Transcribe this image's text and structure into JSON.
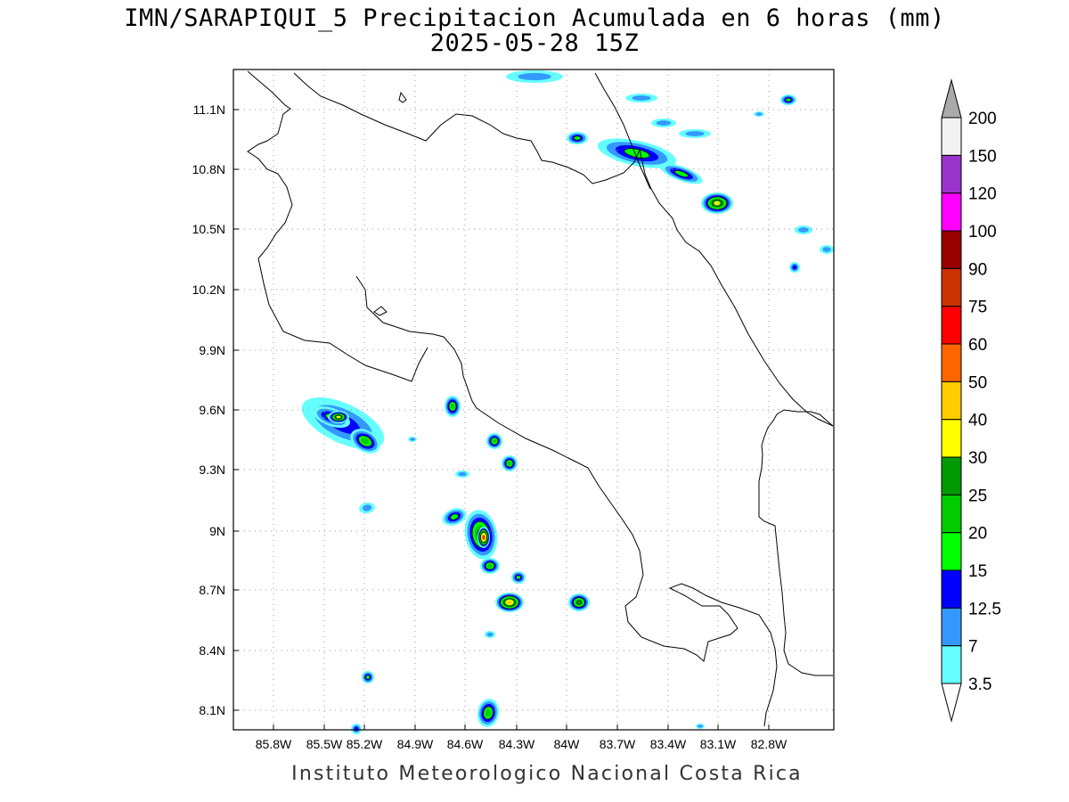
{
  "title": {
    "line1": "IMN/SARAPIQUI_5 Precipitacion Acumulada en 6 horas (mm)",
    "line2": "2025-05-28 15Z"
  },
  "footer": "Instituto Meteorologico Nacional Costa Rica",
  "map": {
    "lon_range": [
      -86.0,
      -83.0
    ],
    "lat_range": [
      8.0,
      11.2
    ],
    "lon_ticks": [
      "85.8W",
      "85.5W",
      "85.2W",
      "84.9W",
      "84.6W",
      "84.3W",
      "84W",
      "83.7W",
      "83.4W",
      "83.1W",
      "82.8W"
    ],
    "lat_ticks": [
      "11.1N",
      "10.8N",
      "10.5N",
      "10.2N",
      "9.9N",
      "9.6N",
      "9.3N",
      "9N",
      "8.7N",
      "8.4N",
      "8.1N"
    ],
    "grid": "dotted"
  },
  "colorbar": {
    "labels": [
      "3.5",
      "7",
      "12.5",
      "15",
      "20",
      "25",
      "30",
      "40",
      "50",
      "60",
      "75",
      "90",
      "100",
      "120",
      "150",
      "200"
    ],
    "colors": [
      "#66ffff",
      "#3399ff",
      "#0000ff",
      "#00ff00",
      "#00cc00",
      "#009900",
      "#ffff00",
      "#ffcc00",
      "#ff6600",
      "#ff0000",
      "#cc3300",
      "#990000",
      "#ff00ff",
      "#9933cc",
      "#f2f2f2",
      "#aaaaaa"
    ]
  }
}
